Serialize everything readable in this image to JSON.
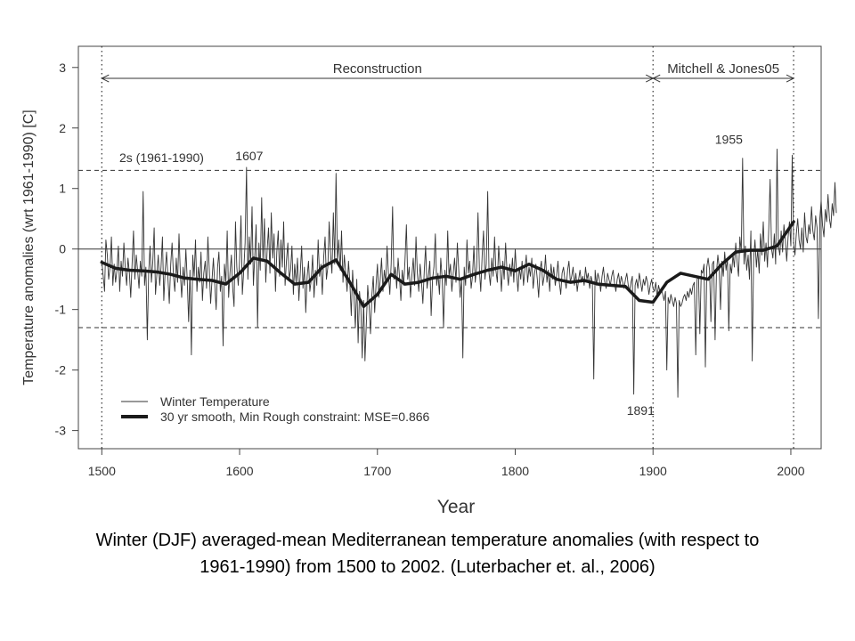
{
  "chart_data": {
    "type": "line",
    "xlabel": "Year",
    "ylabel": "Temperature anomalies (wrt 1961-1990) [C]",
    "xlim": [
      1483,
      2022
    ],
    "ylim": [
      -3.3,
      3.35
    ],
    "xticks": [
      1500,
      1600,
      1700,
      1800,
      1900,
      2000
    ],
    "yticks": [
      -3,
      -2,
      -1,
      0,
      1,
      2,
      3
    ],
    "grid": false,
    "legend_position": "bottom-left",
    "reference_lines": {
      "zero": 0,
      "two_sigma_upper": 1.3,
      "two_sigma_lower": -1.3,
      "two_sigma_label": "2s  (1961-1990)"
    },
    "period_markers": [
      1500,
      1900,
      2002
    ],
    "periods": [
      {
        "label": "Reconstruction",
        "start": 1500,
        "end": 1900
      },
      {
        "label": "Mitchell & Jones05",
        "start": 1900,
        "end": 2002
      }
    ],
    "annotations": [
      {
        "label": "1607",
        "x": 1607,
        "y": 1.38
      },
      {
        "label": "1955",
        "x": 1955,
        "y": 1.65
      },
      {
        "label": "1891",
        "x": 1891,
        "y": -2.45
      }
    ],
    "series": [
      {
        "name": "Winter Temperature",
        "style": "thin",
        "color": "#333333",
        "x_start": 1500,
        "x_step": 1,
        "values": [
          -0.2,
          -0.45,
          -0.7,
          0.15,
          -0.1,
          -0.5,
          -0.3,
          0.2,
          -0.6,
          -0.25,
          -0.55,
          -0.35,
          0.05,
          -0.7,
          -0.2,
          -0.45,
          0.1,
          -0.3,
          -0.6,
          -0.15,
          -0.4,
          -0.8,
          -0.25,
          0.3,
          -0.5,
          -0.1,
          -0.35,
          -0.65,
          -0.2,
          -0.45,
          0.95,
          -0.6,
          -0.3,
          -1.5,
          -0.4,
          0.05,
          -0.55,
          -0.2,
          0.35,
          -0.75,
          -0.4,
          -0.1,
          -0.6,
          -0.3,
          0.2,
          -0.85,
          -0.35,
          -0.05,
          -0.5,
          -0.9,
          -0.25,
          0.1,
          -0.45,
          -0.7,
          -0.15,
          -0.55,
          0.25,
          -0.4,
          -0.8,
          -0.3,
          -0.6,
          0.0,
          -0.5,
          -1.2,
          -0.35,
          -1.75,
          -0.1,
          -0.45,
          0.15,
          -0.7,
          -0.3,
          -0.55,
          -0.05,
          -0.85,
          -0.4,
          -0.2,
          -0.65,
          0.2,
          -0.35,
          -0.9,
          -0.5,
          -0.15,
          -0.6,
          -1.0,
          -0.3,
          -0.05,
          -0.7,
          -0.45,
          -1.6,
          -0.25,
          -0.55,
          0.3,
          -0.8,
          -0.4,
          -0.1,
          -0.65,
          -0.95,
          0.45,
          -0.3,
          -0.6,
          -0.2,
          0.55,
          -0.75,
          -0.35,
          0.1,
          1.35,
          -0.5,
          0.2,
          -0.25,
          0.7,
          -0.6,
          -0.1,
          0.4,
          -1.3,
          0.1,
          -0.35,
          0.85,
          -0.2,
          0.5,
          -0.55,
          0.0,
          0.35,
          -0.4,
          0.6,
          -0.15,
          0.25,
          -0.7,
          -0.05,
          0.3,
          -0.45,
          0.15,
          -0.3,
          0.45,
          -0.6,
          -0.2,
          0.1,
          -0.5,
          -0.35,
          0.05,
          -0.75,
          -0.25,
          -0.55,
          -0.15,
          -0.85,
          -0.4,
          0.05,
          -0.65,
          -0.3,
          -1.05,
          -0.45,
          -0.2,
          -0.7,
          -0.5,
          -0.1,
          -0.8,
          -0.35,
          -0.6,
          0.15,
          -0.45,
          -0.25,
          -0.75,
          -0.15,
          0.2,
          -0.5,
          -0.3,
          0.45,
          -0.1,
          -0.4,
          0.6,
          -0.25,
          1.25,
          -0.2,
          0.15,
          -0.35,
          0.3,
          -0.55,
          -0.1,
          -0.4,
          -0.7,
          -0.2,
          -0.55,
          -1.1,
          -0.35,
          -0.8,
          -1.3,
          -0.5,
          -1.55,
          -0.7,
          -1.0,
          -1.8,
          -0.85,
          -1.85,
          -1.2,
          -0.6,
          -0.95,
          -1.4,
          -0.75,
          -0.45,
          -1.05,
          -0.6,
          -0.25,
          -0.8,
          -0.5,
          -0.15,
          -0.7,
          -0.35,
          -0.55,
          0.05,
          -0.4,
          -0.75,
          -0.25,
          0.7,
          -0.5,
          -0.3,
          -0.65,
          -0.15,
          -0.45,
          -0.85,
          -0.35,
          -0.6,
          -0.2,
          0.4,
          -0.5,
          -0.3,
          -0.8,
          -0.45,
          -0.15,
          -0.6,
          0.2,
          -0.4,
          -0.7,
          -0.25,
          -0.55,
          -0.9,
          -0.35,
          0.05,
          -0.65,
          -0.45,
          -0.2,
          -1.1,
          -0.5,
          -0.3,
          0.25,
          -0.6,
          -0.4,
          -0.75,
          -0.15,
          -0.5,
          -1.3,
          -0.35,
          -0.6,
          0.3,
          -0.45,
          -0.25,
          -0.7,
          -0.4,
          -0.15,
          -0.55,
          0.1,
          -0.35,
          -0.8,
          -0.5,
          -1.8,
          -0.3,
          -0.6,
          0.15,
          -0.4,
          -0.2,
          -0.65,
          -0.45,
          0.05,
          -0.55,
          -0.3,
          0.6,
          -0.35,
          -0.7,
          -0.1,
          0.3,
          -0.5,
          -0.25,
          0.95,
          -0.4,
          -0.6,
          -0.15,
          -0.45,
          0.2,
          -0.35,
          -0.55,
          0.05,
          -0.3,
          -0.7,
          -0.2,
          -0.5,
          0.1,
          -0.35,
          -0.6,
          -0.25,
          -0.45,
          -0.15,
          -0.55,
          0.0,
          -0.4,
          -0.7,
          -0.3,
          -0.5,
          -0.2,
          -0.6,
          -0.35,
          -0.1,
          -0.55,
          -0.3,
          -0.45,
          -0.15,
          -0.65,
          -0.4,
          -0.25,
          -0.5,
          -0.8,
          -0.35,
          -0.2,
          -0.6,
          -0.45,
          -0.1,
          -0.55,
          -0.35,
          -0.7,
          -0.25,
          -0.5,
          -0.3,
          -0.6,
          -0.45,
          -0.2,
          -0.55,
          -0.75,
          -0.4,
          -0.3,
          -0.5,
          -0.65,
          -0.35,
          -0.2,
          -0.55,
          -0.45,
          -0.3,
          -0.6,
          -0.4,
          -0.7,
          -0.5,
          -0.35,
          -0.55,
          -0.45,
          -0.6,
          -0.3,
          -0.5,
          -0.4,
          -0.65,
          -0.45,
          -0.55,
          -2.15,
          -0.35,
          -0.6,
          -0.4,
          -0.5,
          -0.7,
          -0.45,
          -0.3,
          -0.55,
          -0.65,
          -0.4,
          -0.5,
          -0.6,
          -0.45,
          -0.35,
          -0.55,
          -0.7,
          -0.5,
          -0.4,
          -0.6,
          -0.45,
          -0.55,
          -0.65,
          -0.5,
          -0.4,
          -0.6,
          -0.7,
          -0.55,
          -0.45,
          -2.4,
          -0.6,
          -0.5,
          -0.65,
          -0.4,
          -0.55,
          -0.7,
          -0.5,
          -0.6,
          -0.45,
          -0.55,
          -0.75,
          -0.6,
          -0.5,
          -0.65,
          -0.7,
          -0.55,
          -0.8,
          -0.6,
          -0.7,
          -0.65,
          -0.75,
          -0.85,
          -0.7,
          -2.0,
          -0.8,
          -0.9,
          -0.75,
          -0.85,
          -0.95,
          -0.8,
          -0.9,
          -2.45,
          -0.85,
          -0.95,
          -0.9,
          -0.8,
          -0.75,
          -0.85,
          -0.7,
          -0.8,
          -0.65,
          -0.75,
          -0.6,
          -0.55,
          -1.75,
          -0.5,
          -0.45,
          -1.4,
          -0.35,
          -0.4,
          -0.25,
          -1.95,
          -0.3,
          -0.15,
          -0.35,
          -1.2,
          -0.25,
          -0.2,
          -1.5,
          -0.4,
          -0.1,
          -0.3,
          -1.0,
          -0.2,
          -0.45,
          -0.05,
          -0.35,
          -0.15,
          -1.35,
          -0.25,
          -0.4,
          -0.1,
          -0.3,
          0.1,
          -0.2,
          -0.45,
          0.2,
          -0.05,
          1.5,
          -0.25,
          0.05,
          -0.35,
          -0.1,
          -0.5,
          0.3,
          -1.85,
          -0.15,
          0.15,
          -0.3,
          0.0,
          -0.4,
          0.25,
          -0.1,
          0.45,
          -0.2,
          0.1,
          -0.3,
          0.35,
          1.15,
          0.0,
          -0.15,
          0.25,
          -0.25,
          1.65,
          0.05,
          -0.1,
          0.3,
          -0.05,
          0.4,
          0.15,
          -0.2,
          0.2,
          0.45,
          0.05,
          1.55,
          0.1,
          -0.1,
          0.25,
          0.5,
          0.15,
          0.0,
          0.35,
          -0.05,
          0.6,
          0.2,
          0.1,
          0.4,
          0.25,
          0.7,
          0.3,
          0.15,
          0.55,
          0.35,
          -1.15,
          0.5,
          0.8,
          0.4,
          0.2,
          0.65,
          0.45,
          0.9,
          0.5,
          0.35,
          0.75,
          0.55,
          1.1,
          0.6
        ]
      },
      {
        "name": "30 yr smooth, Min Rough constraint: MSE=0.866",
        "style": "thick",
        "color": "#1a1a1a",
        "x": [
          1500,
          1510,
          1520,
          1530,
          1540,
          1550,
          1560,
          1570,
          1580,
          1590,
          1600,
          1610,
          1620,
          1630,
          1640,
          1650,
          1660,
          1670,
          1680,
          1690,
          1700,
          1710,
          1720,
          1730,
          1740,
          1750,
          1760,
          1770,
          1780,
          1790,
          1800,
          1810,
          1820,
          1830,
          1840,
          1850,
          1860,
          1870,
          1880,
          1890,
          1900,
          1910,
          1920,
          1930,
          1940,
          1950,
          1960,
          1970,
          1980,
          1990,
          2002
        ],
        "values": [
          -0.22,
          -0.32,
          -0.35,
          -0.36,
          -0.38,
          -0.42,
          -0.48,
          -0.5,
          -0.52,
          -0.58,
          -0.4,
          -0.15,
          -0.2,
          -0.4,
          -0.58,
          -0.55,
          -0.3,
          -0.18,
          -0.55,
          -0.95,
          -0.75,
          -0.42,
          -0.58,
          -0.55,
          -0.48,
          -0.45,
          -0.5,
          -0.42,
          -0.35,
          -0.3,
          -0.36,
          -0.25,
          -0.35,
          -0.5,
          -0.55,
          -0.52,
          -0.58,
          -0.6,
          -0.62,
          -0.85,
          -0.88,
          -0.55,
          -0.4,
          -0.45,
          -0.5,
          -0.25,
          -0.05,
          -0.02,
          -0.02,
          0.05,
          0.45
        ]
      }
    ]
  },
  "caption": {
    "line1": "Winter (DJF) averaged-mean Mediterranean temperature anomalies (with respect to",
    "line2": "1961-1990) from 1500 to 2002. (Luterbacher et. al., 2006)"
  }
}
